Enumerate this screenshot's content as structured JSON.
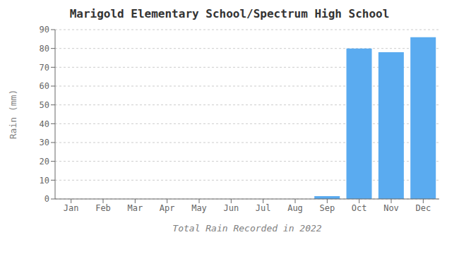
{
  "chart_data": {
    "type": "bar",
    "title": "Marigold Elementary School/Spectrum High School",
    "xlabel": "Total Rain Recorded in 2022",
    "ylabel": "Rain (mm)",
    "categories": [
      "Jan",
      "Feb",
      "Mar",
      "Apr",
      "May",
      "Jun",
      "Jul",
      "Aug",
      "Sep",
      "Oct",
      "Nov",
      "Dec"
    ],
    "values": [
      0,
      0,
      0,
      0,
      0,
      0,
      0,
      0,
      1.5,
      80,
      78,
      86
    ],
    "color": "#5aabf0",
    "ylim": [
      0,
      90
    ],
    "yticks": [
      0,
      10,
      20,
      30,
      40,
      50,
      60,
      70,
      80,
      90
    ],
    "grid": true
  }
}
